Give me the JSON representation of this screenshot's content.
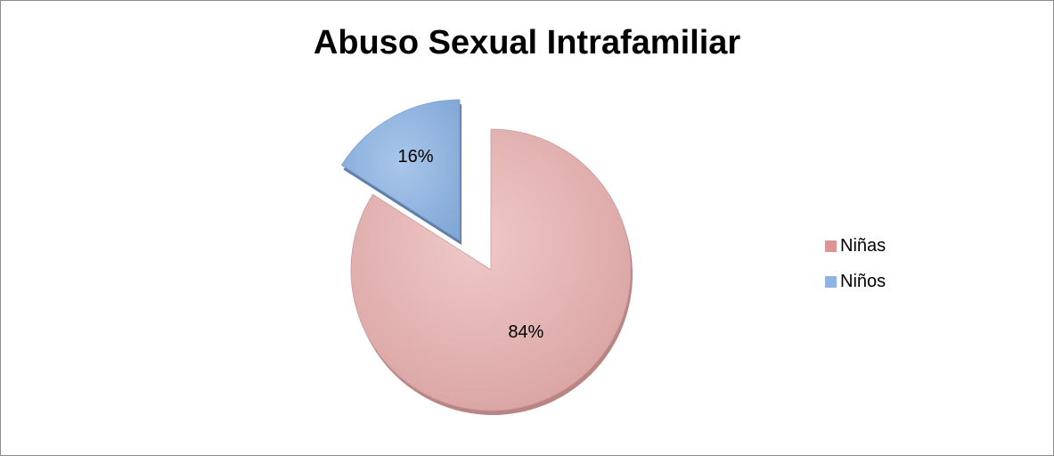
{
  "chart_data": {
    "type": "pie",
    "title": "Abuso Sexual Intrafamiliar",
    "exploded": true,
    "style": "3d",
    "legend_position": "right",
    "slices": [
      {
        "label": "Niñas",
        "value": 84,
        "display": "84%",
        "color": "#d99694"
      },
      {
        "label": "Niños",
        "value": 16,
        "display": "16%",
        "color": "#8eb4e3"
      }
    ]
  }
}
